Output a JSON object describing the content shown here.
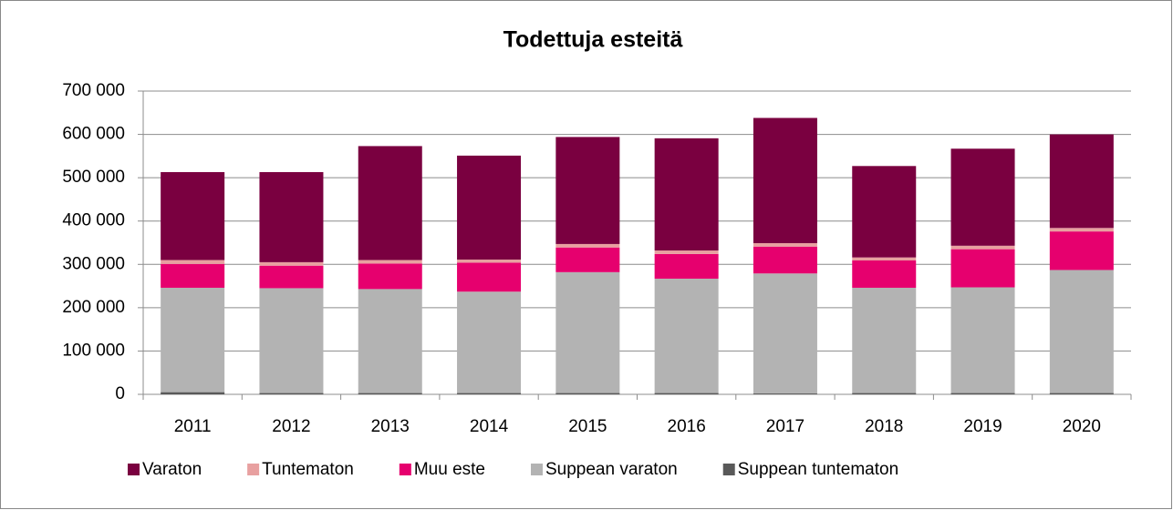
{
  "chart_data": {
    "type": "stacked_bar",
    "title": "Todettuja esteitä",
    "categories": [
      "2011",
      "2012",
      "2013",
      "2014",
      "2015",
      "2016",
      "2017",
      "2018",
      "2019",
      "2020"
    ],
    "series": [
      {
        "name": "Suppean tuntematon",
        "color": "#595959",
        "values": [
          5000,
          3000,
          3000,
          3000,
          3000,
          3000,
          2000,
          3000,
          3000,
          3000
        ]
      },
      {
        "name": "Suppean varaton",
        "color": "#b3b3b3",
        "values": [
          241000,
          242000,
          240000,
          234000,
          279000,
          264000,
          277000,
          243000,
          244000,
          284000
        ]
      },
      {
        "name": "Muu este",
        "color": "#e6006e",
        "values": [
          55000,
          52000,
          59000,
          67000,
          57000,
          57000,
          62000,
          63000,
          88000,
          89000
        ]
      },
      {
        "name": "Tuntematon",
        "color": "#e8a0a0",
        "values": [
          9000,
          8000,
          8000,
          7000,
          8000,
          8000,
          8000,
          7000,
          8000,
          8000
        ]
      },
      {
        "name": "Varaton",
        "color": "#7a0040",
        "values": [
          203000,
          208000,
          263000,
          240000,
          247000,
          259000,
          289000,
          211000,
          224000,
          216000
        ]
      }
    ],
    "ylim": [
      0,
      700000
    ],
    "yticks": [
      0,
      {
        "value": 100000,
        "label": "100 000"
      },
      {
        "value": 200000,
        "label": "200 000"
      },
      {
        "value": 300000,
        "label": "300 000"
      },
      {
        "value": 400000,
        "label": "400 000"
      },
      {
        "value": 500000,
        "label": "500 000"
      },
      {
        "value": 600000,
        "label": "600 000"
      },
      {
        "value": 700000,
        "label": "700 000"
      }
    ],
    "grid": true,
    "legend": "bottom"
  }
}
